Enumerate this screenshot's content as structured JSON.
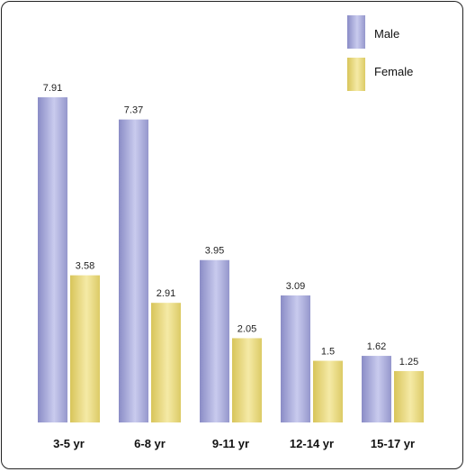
{
  "chart_data": {
    "type": "bar",
    "categories": [
      "3-5 yr",
      "6-8 yr",
      "9-11 yr",
      "12-14 yr",
      "15-17 yr"
    ],
    "series": [
      {
        "name": "Male",
        "values": [
          7.91,
          7.37,
          3.95,
          3.09,
          1.62
        ],
        "value_labels": [
          "7.91",
          "7.37",
          "3.95",
          "3.09",
          "1.62"
        ],
        "color": "#a8aad8"
      },
      {
        "name": "Female",
        "values": [
          3.58,
          2.91,
          2.05,
          1.5,
          1.25
        ],
        "value_labels": [
          "3.58",
          "2.91",
          "2.05",
          "1.5",
          "1.25"
        ],
        "color": "#e6d67a"
      }
    ],
    "title": "",
    "xlabel": "",
    "ylabel": "",
    "ylim": [
      0,
      8.5
    ],
    "grid": false,
    "legend_position": "top-right"
  }
}
